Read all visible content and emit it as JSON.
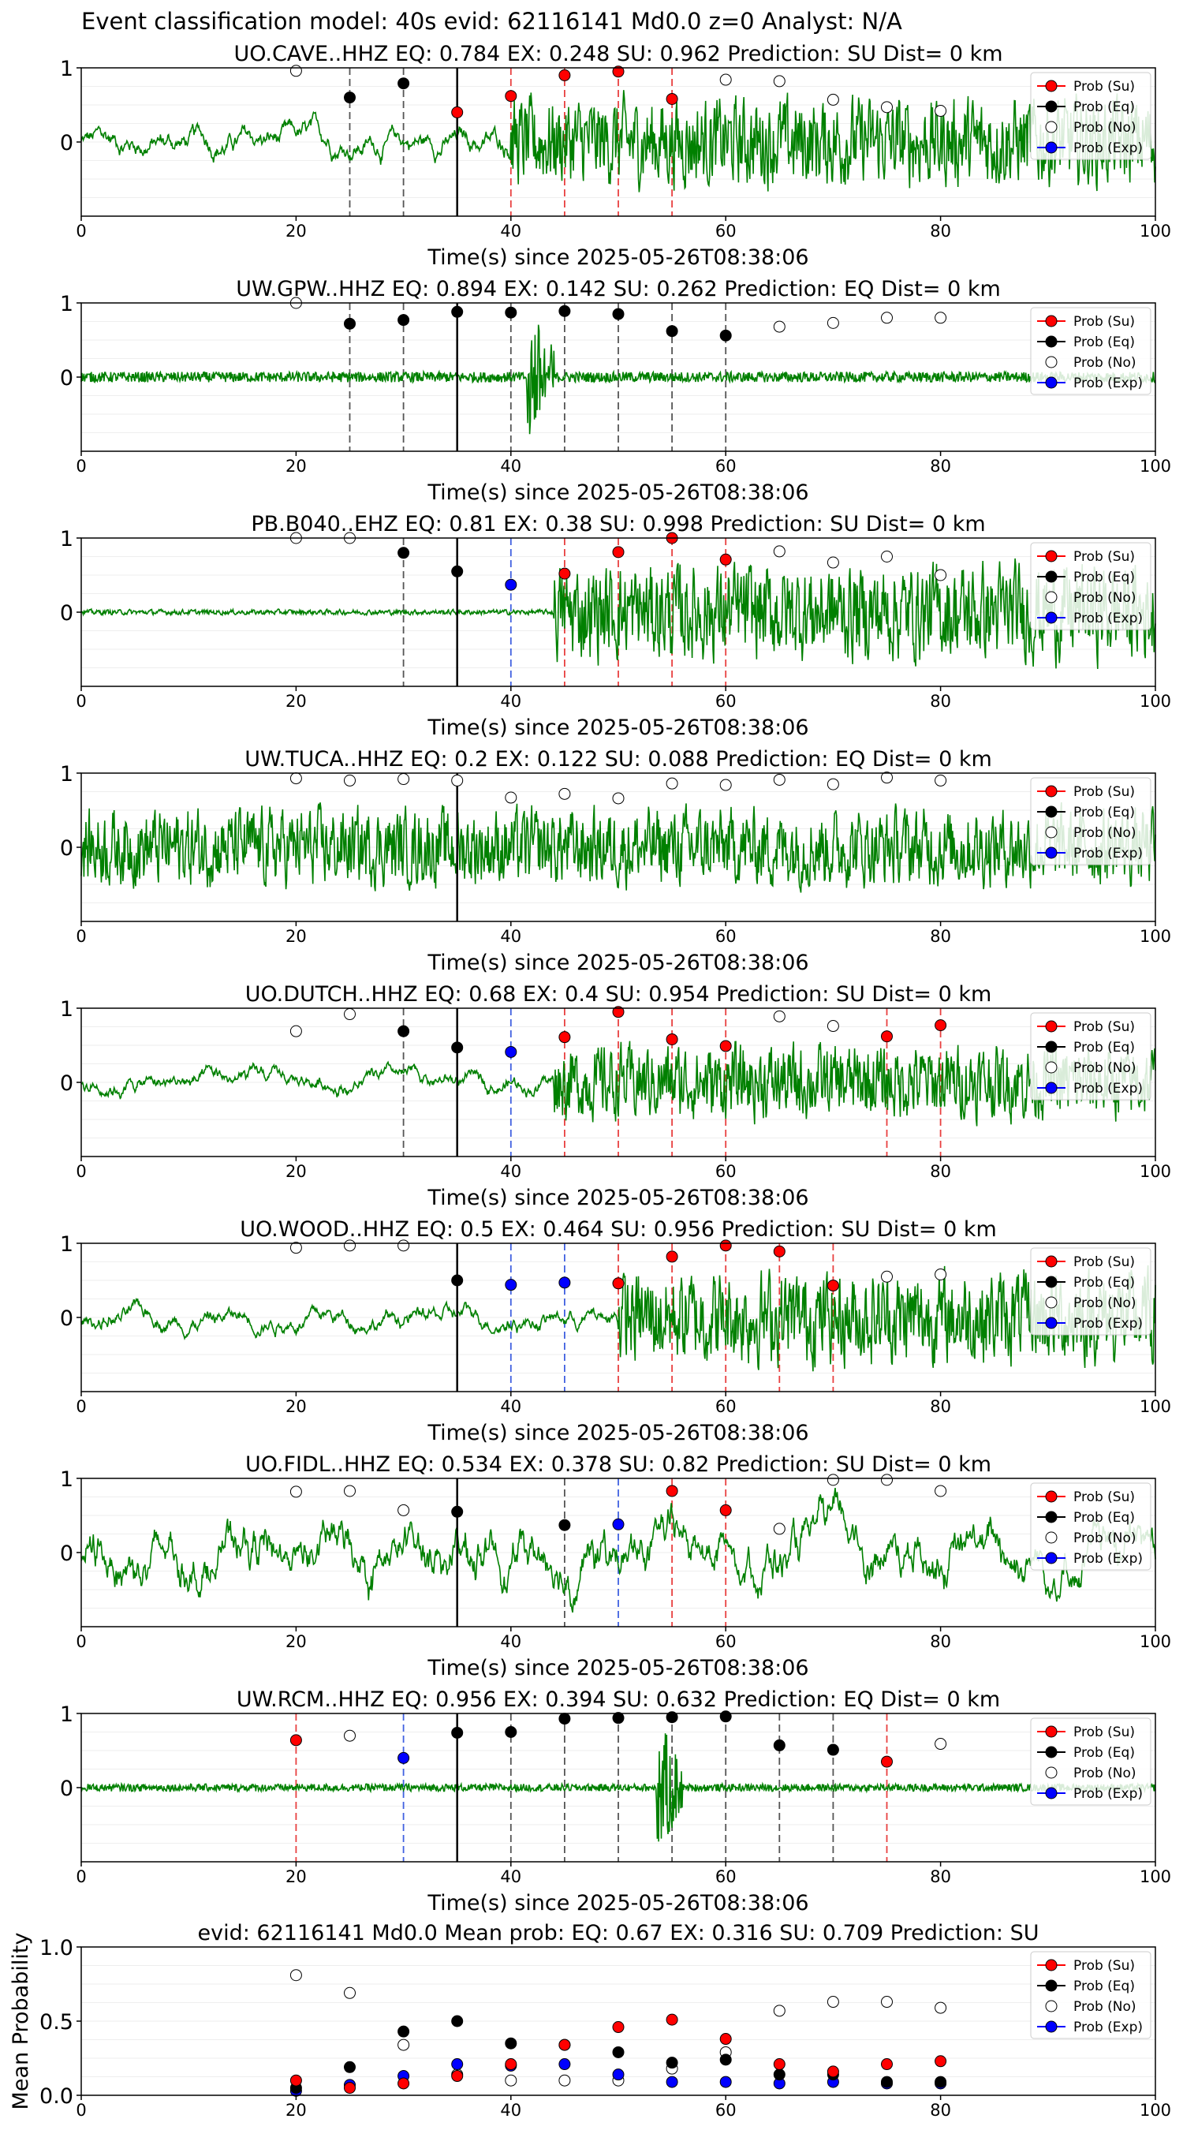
{
  "suptitle": "Event classification model: 40s evid: 62116141 Md0.0 z=0 Analyst: N/A",
  "colors": {
    "su": "#ff0000",
    "eq": "#000000",
    "no": "#ffffff",
    "exp": "#0000ff",
    "trace": "#008000"
  },
  "legend_labels": [
    "Prob (Su)",
    "Prob (Eq)",
    "Prob (No)",
    "Prob (Exp)"
  ],
  "chart_data": [
    {
      "type": "line",
      "title": "UO.CAVE..HHZ   EQ: 0.784  EX: 0.248  SU: 0.962   Prediction: SU    Dist= 0 km",
      "xlabel": "Time(s) since 2025-05-26T08:38:06",
      "xlim": [
        0,
        100
      ],
      "ylim": [
        -1,
        1
      ],
      "x_ticks": [
        "0",
        "20",
        "40",
        "60",
        "80",
        "100"
      ],
      "y_ticks": [
        "1",
        "0"
      ],
      "grid": "horizontal",
      "legend": "top-right",
      "pick_time": 35,
      "waveform": {
        "onset": 40,
        "amp_pre": 0.25,
        "amp_post": 0.72,
        "style": "long-period-then-noisy"
      },
      "points": {
        "su": [
          [
            35,
            0.4
          ],
          [
            40,
            0.62
          ],
          [
            45,
            0.9
          ],
          [
            50,
            0.95
          ],
          [
            55,
            0.58
          ]
        ],
        "eq": [
          [
            25,
            0.6
          ],
          [
            30,
            0.79
          ]
        ],
        "no": [
          [
            20,
            0.96
          ],
          [
            60,
            0.84
          ],
          [
            65,
            0.82
          ],
          [
            70,
            0.57
          ],
          [
            75,
            0.47
          ],
          [
            80,
            0.42
          ]
        ],
        "exp": []
      }
    },
    {
      "type": "line",
      "title": "UW.GPW..HHZ   EQ: 0.894  EX: 0.142  SU: 0.262   Prediction: EQ    Dist= 0 km",
      "xlabel": "Time(s) since 2025-05-26T08:38:06",
      "xlim": [
        0,
        100
      ],
      "ylim": [
        -1,
        1
      ],
      "x_ticks": [
        "0",
        "20",
        "40",
        "60",
        "80",
        "100"
      ],
      "y_ticks": [
        "1",
        "0"
      ],
      "grid": "horizontal",
      "legend": "top-right",
      "pick_time": 35,
      "waveform": {
        "onset": 41.5,
        "amp_pre": 0.07,
        "amp_post": 0.07,
        "style": "spike",
        "spike_amp": 1.0,
        "spike_len": 2.5
      },
      "points": {
        "su": [],
        "eq": [
          [
            25,
            0.72
          ],
          [
            30,
            0.77
          ],
          [
            35,
            0.88
          ],
          [
            40,
            0.87
          ],
          [
            45,
            0.89
          ],
          [
            50,
            0.85
          ],
          [
            55,
            0.62
          ],
          [
            60,
            0.56
          ]
        ],
        "no": [
          [
            20,
            1.0
          ],
          [
            65,
            0.68
          ],
          [
            70,
            0.73
          ],
          [
            75,
            0.8
          ],
          [
            80,
            0.8
          ]
        ],
        "exp": []
      }
    },
    {
      "type": "line",
      "title": "PB.B040..EHZ   EQ: 0.81  EX: 0.38  SU: 0.998   Prediction: SU    Dist= 0 km",
      "xlabel": "Time(s) since 2025-05-26T08:38:06",
      "xlim": [
        0,
        100
      ],
      "ylim": [
        -1,
        1
      ],
      "x_ticks": [
        "0",
        "20",
        "40",
        "60",
        "80",
        "100"
      ],
      "y_ticks": [
        "1",
        "0"
      ],
      "grid": "horizontal",
      "legend": "top-right",
      "pick_time": 35,
      "waveform": {
        "onset": 44,
        "amp_pre": 0.04,
        "amp_post": 0.75,
        "style": "noisy"
      },
      "points": {
        "su": [
          [
            45,
            0.52
          ],
          [
            50,
            0.81
          ],
          [
            55,
            1.0
          ],
          [
            60,
            0.71
          ]
        ],
        "eq": [
          [
            30,
            0.8
          ],
          [
            35,
            0.55
          ]
        ],
        "no": [
          [
            20,
            1.0
          ],
          [
            25,
            1.0
          ],
          [
            65,
            0.82
          ],
          [
            70,
            0.67
          ],
          [
            75,
            0.75
          ],
          [
            80,
            0.5
          ]
        ],
        "exp": [
          [
            40,
            0.37
          ]
        ]
      }
    },
    {
      "type": "line",
      "title": "UW.TUCA..HHZ   EQ: 0.2  EX: 0.122  SU: 0.088   Prediction: EQ    Dist= 0 km",
      "xlabel": "Time(s) since 2025-05-26T08:38:06",
      "xlim": [
        0,
        100
      ],
      "ylim": [
        -1,
        1
      ],
      "x_ticks": [
        "0",
        "20",
        "40",
        "60",
        "80",
        "100"
      ],
      "y_ticks": [
        "1",
        "0"
      ],
      "grid": "horizontal",
      "legend": "top-right",
      "pick_time": 35,
      "waveform": {
        "onset": 0,
        "amp_pre": 0.6,
        "amp_post": 0.6,
        "style": "noisy"
      },
      "points": {
        "su": [],
        "eq": [],
        "no": [
          [
            20,
            0.93
          ],
          [
            25,
            0.9
          ],
          [
            30,
            0.92
          ],
          [
            35,
            0.9
          ],
          [
            40,
            0.67
          ],
          [
            45,
            0.72
          ],
          [
            50,
            0.66
          ],
          [
            55,
            0.86
          ],
          [
            60,
            0.84
          ],
          [
            65,
            0.91
          ],
          [
            70,
            0.85
          ],
          [
            75,
            0.94
          ],
          [
            80,
            0.9
          ]
        ],
        "exp": []
      }
    },
    {
      "type": "line",
      "title": "UO.DUTCH..HHZ   EQ: 0.68  EX: 0.4  SU: 0.954   Prediction: SU    Dist= 0 km",
      "xlabel": "Time(s) since 2025-05-26T08:38:06",
      "xlim": [
        0,
        100
      ],
      "ylim": [
        -1,
        1
      ],
      "x_ticks": [
        "0",
        "20",
        "40",
        "60",
        "80",
        "100"
      ],
      "y_ticks": [
        "1",
        "0"
      ],
      "grid": "horizontal",
      "legend": "top-right",
      "pick_time": 35,
      "waveform": {
        "onset": 44,
        "amp_pre": 0.18,
        "amp_post": 0.6,
        "style": "long-period-then-noisy"
      },
      "points": {
        "su": [
          [
            45,
            0.61
          ],
          [
            50,
            0.95
          ],
          [
            55,
            0.58
          ],
          [
            60,
            0.49
          ],
          [
            75,
            0.62
          ],
          [
            80,
            0.77
          ]
        ],
        "eq": [
          [
            30,
            0.69
          ],
          [
            35,
            0.47
          ]
        ],
        "no": [
          [
            20,
            0.69
          ],
          [
            25,
            0.92
          ],
          [
            65,
            0.89
          ],
          [
            70,
            0.76
          ]
        ],
        "exp": [
          [
            40,
            0.41
          ]
        ]
      }
    },
    {
      "type": "line",
      "title": "UO.WOOD..HHZ   EQ: 0.5  EX: 0.464  SU: 0.956   Prediction: SU    Dist= 0 km",
      "xlabel": "Time(s) since 2025-05-26T08:38:06",
      "xlim": [
        0,
        100
      ],
      "ylim": [
        -1,
        1
      ],
      "x_ticks": [
        "0",
        "20",
        "40",
        "60",
        "80",
        "100"
      ],
      "y_ticks": [
        "1",
        "0"
      ],
      "grid": "horizontal",
      "legend": "top-right",
      "pick_time": 35,
      "waveform": {
        "onset": 50,
        "amp_pre": 0.2,
        "amp_post": 0.75,
        "style": "long-period-then-noisy"
      },
      "points": {
        "su": [
          [
            50,
            0.46
          ],
          [
            55,
            0.82
          ],
          [
            60,
            0.97
          ],
          [
            65,
            0.89
          ],
          [
            70,
            0.43
          ]
        ],
        "eq": [
          [
            35,
            0.5
          ]
        ],
        "no": [
          [
            20,
            0.94
          ],
          [
            25,
            0.97
          ],
          [
            30,
            0.97
          ],
          [
            75,
            0.55
          ],
          [
            80,
            0.58
          ]
        ],
        "exp": [
          [
            40,
            0.44
          ],
          [
            45,
            0.47
          ]
        ]
      }
    },
    {
      "type": "line",
      "title": "UO.FIDL..HHZ   EQ: 0.534  EX: 0.378  SU: 0.82   Prediction: SU    Dist= 0 km",
      "xlabel": "Time(s) since 2025-05-26T08:38:06",
      "xlim": [
        0,
        100
      ],
      "ylim": [
        -1,
        1
      ],
      "x_ticks": [
        "0",
        "20",
        "40",
        "60",
        "80",
        "100"
      ],
      "y_ticks": [
        "1",
        "0"
      ],
      "grid": "horizontal",
      "legend": "top-right",
      "pick_time": 35,
      "waveform": {
        "onset": 0,
        "amp_pre": 0.55,
        "amp_post": 0.55,
        "style": "long-period"
      },
      "points": {
        "su": [
          [
            55,
            0.83
          ],
          [
            60,
            0.57
          ]
        ],
        "eq": [
          [
            35,
            0.55
          ],
          [
            45,
            0.37
          ]
        ],
        "no": [
          [
            20,
            0.82
          ],
          [
            25,
            0.83
          ],
          [
            30,
            0.57
          ],
          [
            65,
            0.32
          ],
          [
            70,
            0.98
          ],
          [
            75,
            0.98
          ],
          [
            80,
            0.83
          ]
        ],
        "exp": [
          [
            50,
            0.38
          ]
        ]
      }
    },
    {
      "type": "line",
      "title": "UW.RCM..HHZ   EQ: 0.956  EX: 0.394  SU: 0.632   Prediction: EQ    Dist= 0 km",
      "xlabel": "Time(s) since 2025-05-26T08:38:06",
      "xlim": [
        0,
        100
      ],
      "ylim": [
        -1,
        1
      ],
      "x_ticks": [
        "0",
        "20",
        "40",
        "60",
        "80",
        "100"
      ],
      "y_ticks": [
        "1",
        "0"
      ],
      "grid": "horizontal",
      "legend": "top-right",
      "pick_time": 35,
      "waveform": {
        "onset": 53.5,
        "amp_pre": 0.05,
        "amp_post": 0.05,
        "style": "spike",
        "spike_amp": 0.95,
        "spike_len": 2.5
      },
      "points": {
        "su": [
          [
            20,
            0.64
          ],
          [
            75,
            0.35
          ]
        ],
        "eq": [
          [
            35,
            0.74
          ],
          [
            40,
            0.75
          ],
          [
            45,
            0.93
          ],
          [
            50,
            0.94
          ],
          [
            55,
            0.95
          ],
          [
            60,
            0.96
          ],
          [
            65,
            0.57
          ],
          [
            70,
            0.51
          ]
        ],
        "no": [
          [
            25,
            0.7
          ],
          [
            80,
            0.59
          ]
        ],
        "exp": [
          [
            30,
            0.4
          ]
        ]
      }
    },
    {
      "type": "scatter",
      "title": "evid: 62116141  Md0.0   Mean prob:   EQ: 0.67  EX: 0.316  SU: 0.709   Prediction: SU",
      "ylabel": "Mean Probability",
      "xlim": [
        0,
        100
      ],
      "ylim": [
        0,
        1
      ],
      "x_ticks": [
        "0",
        "20",
        "40",
        "60",
        "80",
        "100"
      ],
      "y_ticks": [
        "1.0",
        "0.5",
        "0.0"
      ],
      "grid": "horizontal",
      "legend": "top-right",
      "points": {
        "su": [
          [
            20,
            0.1
          ],
          [
            25,
            0.05
          ],
          [
            30,
            0.08
          ],
          [
            35,
            0.13
          ],
          [
            40,
            0.21
          ],
          [
            45,
            0.34
          ],
          [
            50,
            0.46
          ],
          [
            55,
            0.51
          ],
          [
            60,
            0.38
          ],
          [
            65,
            0.21
          ],
          [
            70,
            0.16
          ],
          [
            75,
            0.21
          ],
          [
            80,
            0.23
          ]
        ],
        "eq": [
          [
            20,
            0.05
          ],
          [
            25,
            0.19
          ],
          [
            30,
            0.43
          ],
          [
            35,
            0.5
          ],
          [
            40,
            0.35
          ],
          [
            45,
            0.34
          ],
          [
            50,
            0.29
          ],
          [
            55,
            0.22
          ],
          [
            60,
            0.24
          ],
          [
            65,
            0.14
          ],
          [
            70,
            0.14
          ],
          [
            75,
            0.09
          ],
          [
            80,
            0.09
          ]
        ],
        "no": [
          [
            20,
            0.81
          ],
          [
            25,
            0.69
          ],
          [
            30,
            0.34
          ],
          [
            35,
            0.14
          ],
          [
            40,
            0.1
          ],
          [
            45,
            0.1
          ],
          [
            50,
            0.1
          ],
          [
            55,
            0.18
          ],
          [
            60,
            0.29
          ],
          [
            65,
            0.57
          ],
          [
            70,
            0.63
          ],
          [
            75,
            0.63
          ],
          [
            80,
            0.59
          ]
        ],
        "exp": [
          [
            20,
            0.03
          ],
          [
            25,
            0.07
          ],
          [
            30,
            0.13
          ],
          [
            35,
            0.21
          ],
          [
            40,
            0.2
          ],
          [
            45,
            0.21
          ],
          [
            50,
            0.14
          ],
          [
            55,
            0.09
          ],
          [
            60,
            0.09
          ],
          [
            65,
            0.08
          ],
          [
            70,
            0.09
          ],
          [
            75,
            0.08
          ],
          [
            80,
            0.08
          ]
        ]
      }
    }
  ]
}
